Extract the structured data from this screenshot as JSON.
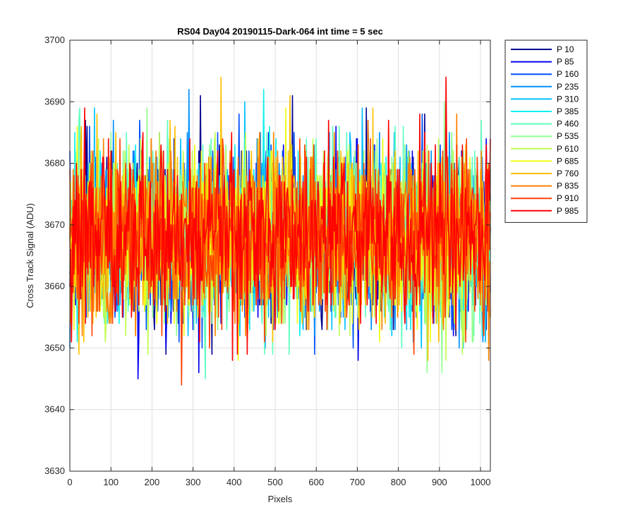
{
  "chart_data": {
    "type": "line",
    "title": "RS04 Day04 20190115-Dark-064 int time = 5 sec",
    "xlabel": "Pixels",
    "ylabel": "Cross Track Signal (ADU)",
    "xlim": [
      0,
      1024
    ],
    "ylim": [
      3630,
      3700
    ],
    "xticks": [
      0,
      100,
      200,
      300,
      400,
      500,
      600,
      700,
      800,
      900,
      1000
    ],
    "yticks": [
      3630,
      3640,
      3650,
      3660,
      3670,
      3680,
      3690,
      3700
    ],
    "grid": true,
    "legend_position": "outside-right-top",
    "signal_mean": 3668,
    "signal_spread": 7,
    "series": [
      {
        "name": "P 10",
        "color": "#00008f"
      },
      {
        "name": "P 85",
        "color": "#0000ef"
      },
      {
        "name": "P 160",
        "color": "#0050ff"
      },
      {
        "name": "P 235",
        "color": "#0090ff"
      },
      {
        "name": "P 310",
        "color": "#00c0ff"
      },
      {
        "name": "P 385",
        "color": "#10f0f0"
      },
      {
        "name": "P 460",
        "color": "#60ffc0"
      },
      {
        "name": "P 535",
        "color": "#90ff90"
      },
      {
        "name": "P 610",
        "color": "#c0ff50"
      },
      {
        "name": "P 685",
        "color": "#f0ff10"
      },
      {
        "name": "P 760",
        "color": "#ffc000"
      },
      {
        "name": "P 835",
        "color": "#ff8000"
      },
      {
        "name": "P 910",
        "color": "#ff4000"
      },
      {
        "name": "P 985",
        "color": "#ff0000"
      }
    ]
  }
}
